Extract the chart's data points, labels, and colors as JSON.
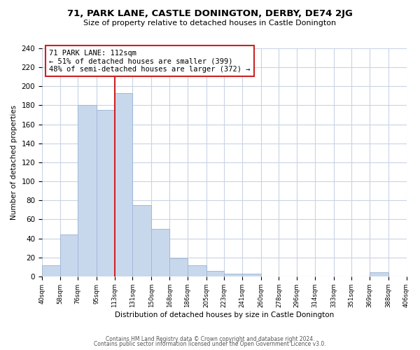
{
  "title": "71, PARK LANE, CASTLE DONINGTON, DERBY, DE74 2JG",
  "subtitle": "Size of property relative to detached houses in Castle Donington",
  "xlabel": "Distribution of detached houses by size in Castle Donington",
  "ylabel": "Number of detached properties",
  "bar_edges": [
    40,
    58,
    76,
    95,
    113,
    131,
    150,
    168,
    186,
    205,
    223,
    241,
    260,
    278,
    296,
    314,
    333,
    351,
    369,
    388,
    406
  ],
  "bar_heights": [
    12,
    44,
    180,
    175,
    193,
    75,
    50,
    19,
    12,
    6,
    3,
    3,
    0,
    0,
    0,
    0,
    0,
    0,
    4,
    0,
    0
  ],
  "tick_labels": [
    "40sqm",
    "58sqm",
    "76sqm",
    "95sqm",
    "113sqm",
    "131sqm",
    "150sqm",
    "168sqm",
    "186sqm",
    "205sqm",
    "223sqm",
    "241sqm",
    "260sqm",
    "278sqm",
    "296sqm",
    "314sqm",
    "333sqm",
    "351sqm",
    "369sqm",
    "388sqm",
    "406sqm"
  ],
  "bar_color": "#c8d8ec",
  "bar_edge_color": "#a0b8d8",
  "property_line_x": 113,
  "property_label": "71 PARK LANE: 112sqm",
  "annotation_line1": "← 51% of detached houses are smaller (399)",
  "annotation_line2": "48% of semi-detached houses are larger (372) →",
  "annotation_box_color": "#ffffff",
  "annotation_box_edge": "#cc2222",
  "line_color": "#cc2222",
  "ylim": [
    0,
    240
  ],
  "yticks": [
    0,
    20,
    40,
    60,
    80,
    100,
    120,
    140,
    160,
    180,
    200,
    220,
    240
  ],
  "footer1": "Contains HM Land Registry data © Crown copyright and database right 2024.",
  "footer2": "Contains public sector information licensed under the Open Government Licence v3.0.",
  "bg_color": "#ffffff",
  "grid_color": "#c8d4e4"
}
